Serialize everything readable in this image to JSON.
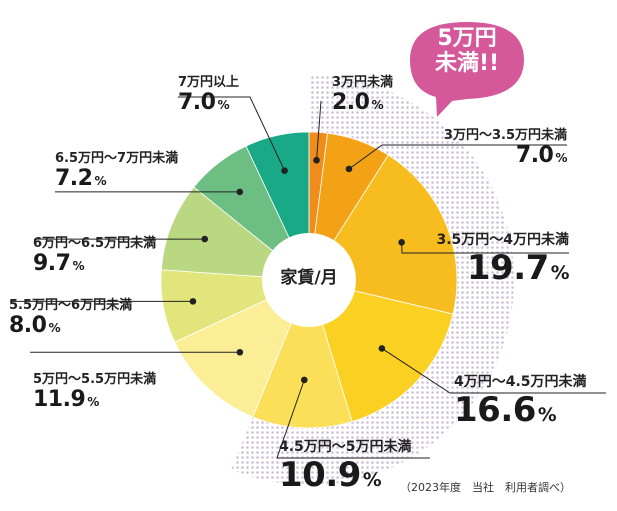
{
  "chart_data": {
    "type": "pie",
    "donut": true,
    "center_label": "家賃/月",
    "slices": [
      {
        "label": "3万円未満",
        "value": 2.0,
        "display": "2.0",
        "color": "#F08C1B"
      },
      {
        "label": "3万円～3.5万円未満",
        "value": 7.0,
        "display": "7.0",
        "color": "#F4A215"
      },
      {
        "label": "3.5万円～4万円未満",
        "value": 19.7,
        "display": "19.7",
        "color": "#F7BC1E"
      },
      {
        "label": "4万円～4.5万円未満",
        "value": 16.6,
        "display": "16.6",
        "color": "#FAD122"
      },
      {
        "label": "4.5万円～5万円未満",
        "value": 10.9,
        "display": "10.9",
        "color": "#FBDF58"
      },
      {
        "label": "5万円～5.5万円未満",
        "value": 11.9,
        "display": "11.9",
        "color": "#FCEE96"
      },
      {
        "label": "5.5万円～6万円未満",
        "value": 8.0,
        "display": "8.0",
        "color": "#E2E47C"
      },
      {
        "label": "6万円～6.5万円未満",
        "value": 9.7,
        "display": "9.7",
        "color": "#BAD882"
      },
      {
        "label": "6.5万円～7万円未満",
        "value": 7.2,
        "display": "7.2",
        "color": "#6DBE82"
      },
      {
        "label": "7万円以上",
        "value": 7.0,
        "display": "7.0",
        "color": "#19A987"
      }
    ],
    "percent_unit": "%",
    "highlight": {
      "text_line1": "5万円",
      "text_line2": "未満!!",
      "color": "#D4589A",
      "pattern_color": "#CDBFD8"
    },
    "source_note": "（2023年度　当社　利用者調べ）"
  }
}
